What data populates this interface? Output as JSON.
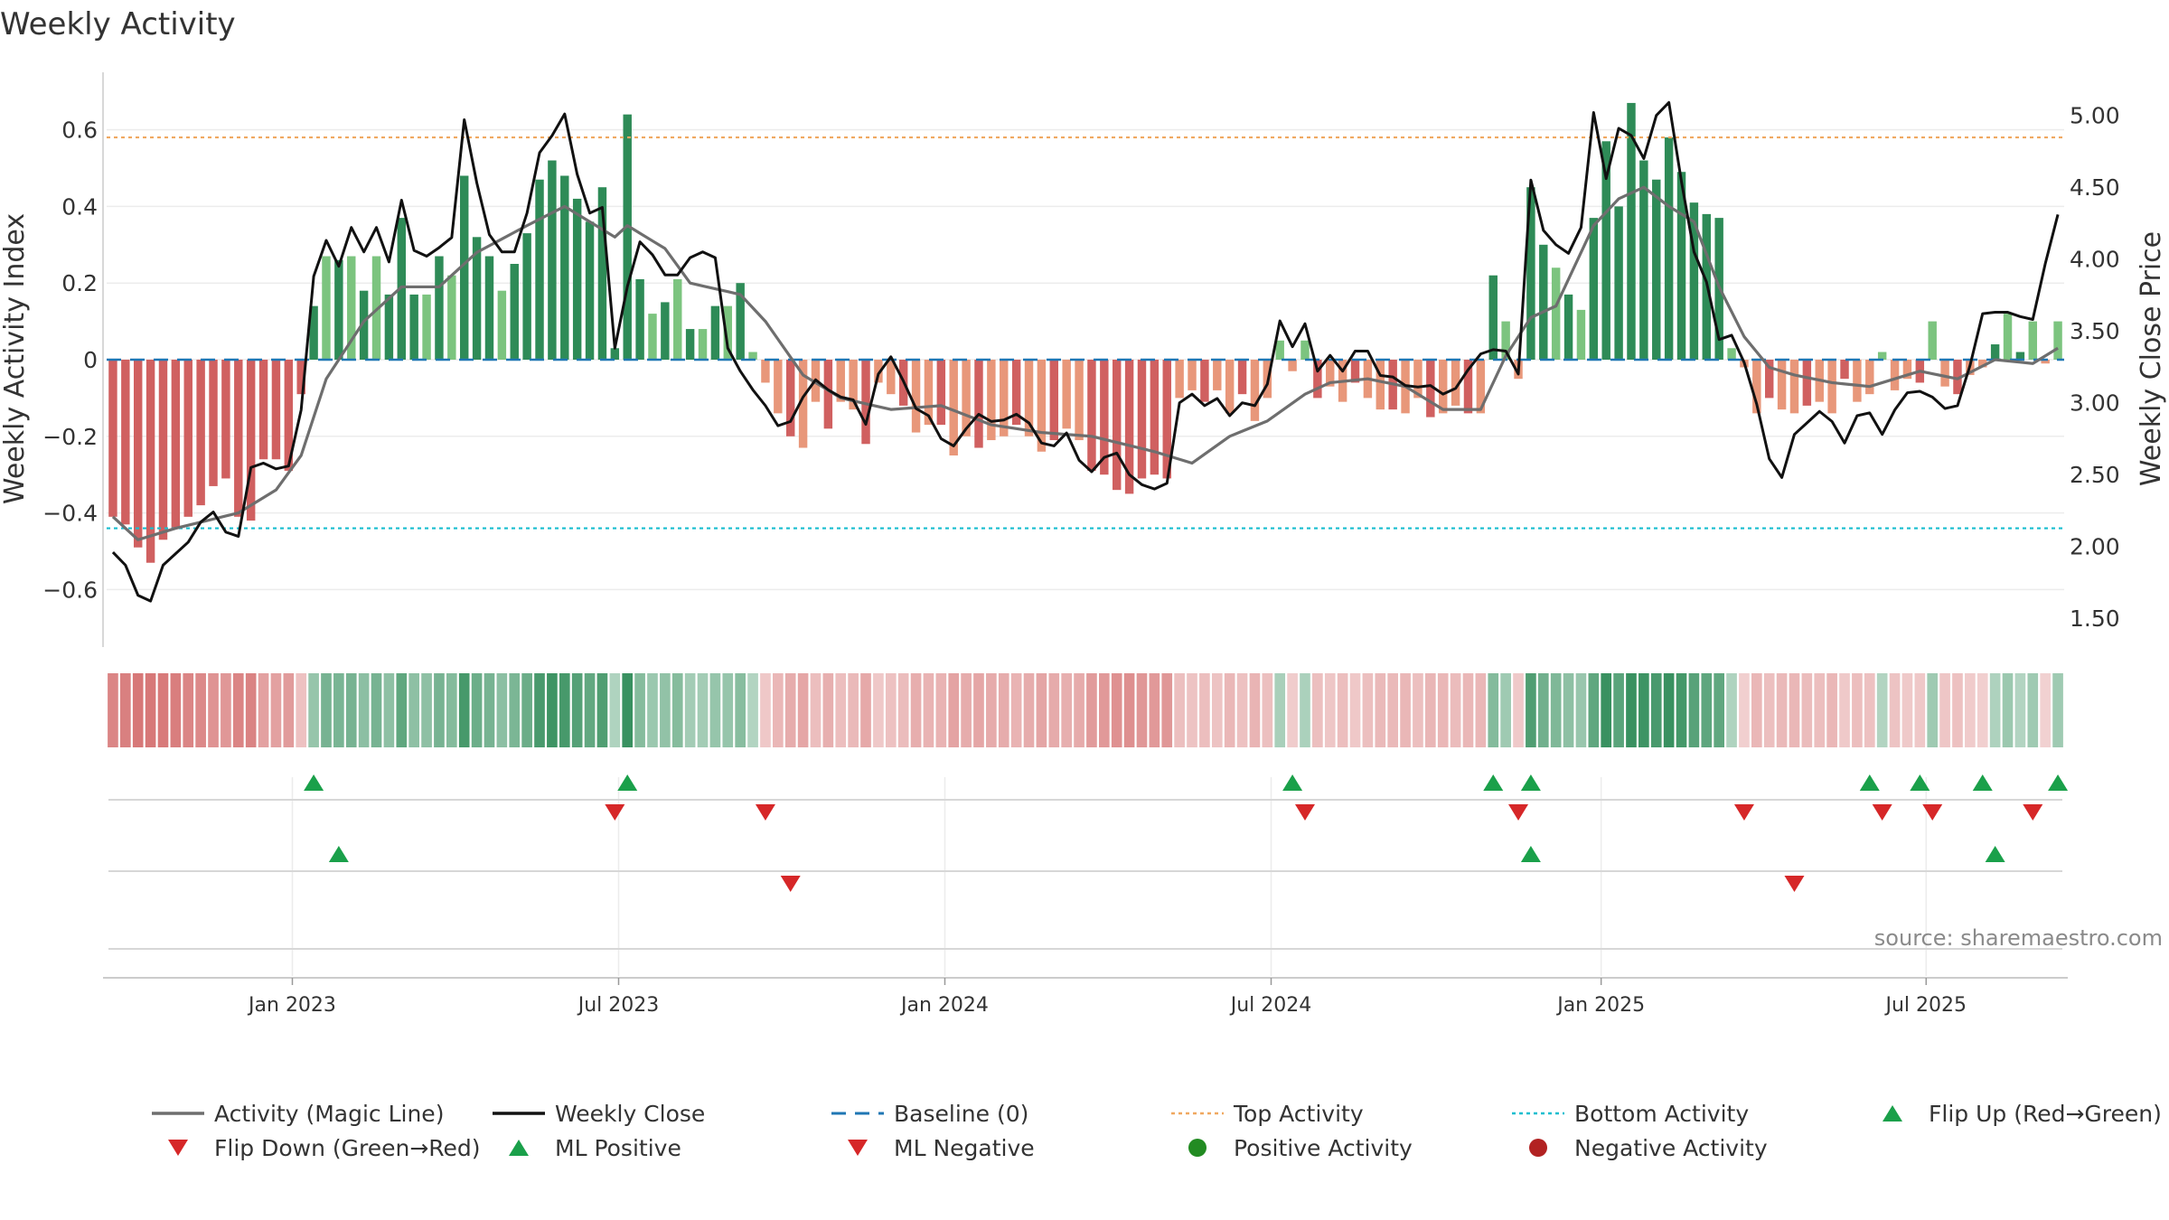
{
  "chart_data": {
    "type": "bar",
    "title": "Weekly Activity",
    "source": "source: sharemaestro.com",
    "ylabel_left": "Weekly Activity Index",
    "ylabel_right": "Weekly Close Price",
    "ylim_left": [
      -0.75,
      0.75
    ],
    "ylim_right": [
      1.3,
      5.3
    ],
    "yticks_left": [
      0.6,
      0.4,
      0.2,
      0,
      -0.2,
      -0.4,
      -0.6
    ],
    "yticks_left_labels": [
      "0.6",
      "0.4",
      "0.2",
      "0",
      "−0.2",
      "−0.4",
      "−0.6"
    ],
    "yticks_right": [
      5.0,
      4.5,
      4.0,
      3.5,
      3.0,
      2.5,
      2.0,
      1.5
    ],
    "yticks_right_labels": [
      "5.00",
      "4.50",
      "4.00",
      "3.50",
      "3.00",
      "2.50",
      "2.00",
      "1.50"
    ],
    "x_start": "2022-10-02",
    "week_count": 156,
    "x_tick_labels": [
      "Jan 2023",
      "Jul 2023",
      "Jan 2024",
      "Jul 2024",
      "Jan 2025",
      "Jul 2025"
    ],
    "x_tick_weeks": [
      14.3,
      40.3,
      66.3,
      92.3,
      118.6,
      144.5
    ],
    "top_activity": 0.58,
    "bottom_activity": -0.44,
    "baseline": 0,
    "flip_up_weeks": [
      16,
      41,
      94,
      110,
      113,
      140,
      144,
      149,
      155
    ],
    "flip_down_weeks": [
      40,
      52,
      95,
      112,
      130,
      141,
      145,
      153
    ],
    "ml_positive_weeks": [
      18,
      113,
      150
    ],
    "ml_negative_weeks": [
      54,
      134
    ],
    "series": [
      {
        "name": "Activity (Magic Line)",
        "color": "#6e6e6e"
      },
      {
        "name": "Weekly Close",
        "color": "#111111"
      }
    ],
    "legend": [
      {
        "label": "Activity (Magic Line)",
        "marker": "line-gray"
      },
      {
        "label": "Weekly Close",
        "marker": "line-black"
      },
      {
        "label": "Baseline (0)",
        "marker": "dash-blue"
      },
      {
        "label": "Top Activity",
        "marker": "dot-orange"
      },
      {
        "label": "Bottom Activity",
        "marker": "dot-cyan"
      },
      {
        "label": "Flip Up (Red→Green)",
        "marker": "tri-up"
      },
      {
        "label": "Flip Down (Green→Red)",
        "marker": "tri-down"
      },
      {
        "label": "ML Positive",
        "marker": "tri-up"
      },
      {
        "label": "ML Negative",
        "marker": "tri-down"
      },
      {
        "label": "Positive Activity",
        "marker": "circle-green"
      },
      {
        "label": "Negative Activity",
        "marker": "circle-red"
      }
    ],
    "colors": {
      "pos_dark": "#2e8b57",
      "pos_light": "#7cc47f",
      "neg_dark": "#d06060",
      "neg_light": "#e8977a",
      "baseline": "#1f77b4",
      "top_line": "#f0a860",
      "bottom_line": "#17becf",
      "flip_up": "#1aa04a",
      "flip_down": "#d62728",
      "legend_green": "#228b22",
      "legend_red": "#b22222"
    }
  }
}
